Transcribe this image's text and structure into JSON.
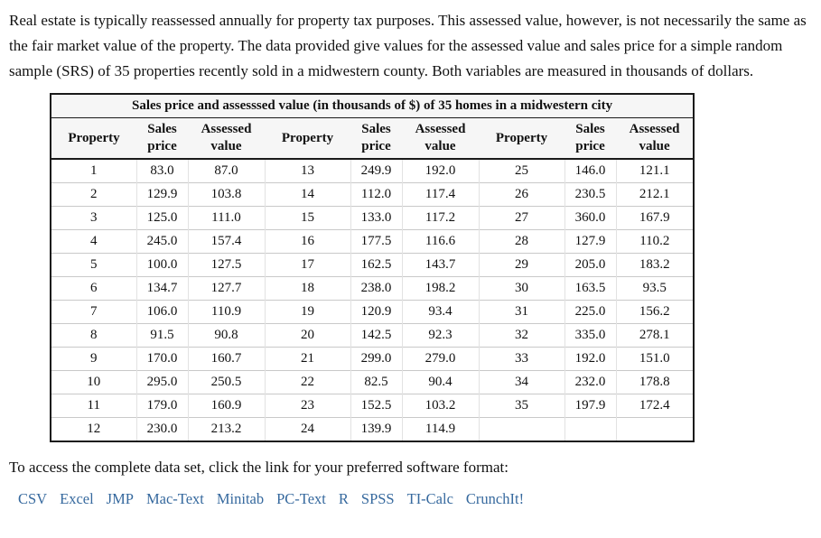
{
  "intro": {
    "text": "Real estate is typically reassessed annually for property tax purposes. This assessed value, however, is not necessarily the same as the fair market value of the property. The data provided give values for the assessed value and sales price for a simple random sample (SRS) of 35 properties recently sold in a midwestern county. Both variables are measured in thousands of dollars."
  },
  "table": {
    "title": "Sales price and assesssed value (in thousands of $) of 35 homes in a midwestern city",
    "headers": [
      "Property",
      "Sales price",
      "Assessed value",
      "Property",
      "Sales price",
      "Assessed value",
      "Property",
      "Sales price",
      "Assessed value"
    ],
    "rows": [
      [
        "1",
        "83.0",
        "87.0",
        "13",
        "249.9",
        "192.0",
        "25",
        "146.0",
        "121.1"
      ],
      [
        "2",
        "129.9",
        "103.8",
        "14",
        "112.0",
        "117.4",
        "26",
        "230.5",
        "212.1"
      ],
      [
        "3",
        "125.0",
        "111.0",
        "15",
        "133.0",
        "117.2",
        "27",
        "360.0",
        "167.9"
      ],
      [
        "4",
        "245.0",
        "157.4",
        "16",
        "177.5",
        "116.6",
        "28",
        "127.9",
        "110.2"
      ],
      [
        "5",
        "100.0",
        "127.5",
        "17",
        "162.5",
        "143.7",
        "29",
        "205.0",
        "183.2"
      ],
      [
        "6",
        "134.7",
        "127.7",
        "18",
        "238.0",
        "198.2",
        "30",
        "163.5",
        "93.5"
      ],
      [
        "7",
        "106.0",
        "110.9",
        "19",
        "120.9",
        "93.4",
        "31",
        "225.0",
        "156.2"
      ],
      [
        "8",
        "91.5",
        "90.8",
        "20",
        "142.5",
        "92.3",
        "32",
        "335.0",
        "278.1"
      ],
      [
        "9",
        "170.0",
        "160.7",
        "21",
        "299.0",
        "279.0",
        "33",
        "192.0",
        "151.0"
      ],
      [
        "10",
        "295.0",
        "250.5",
        "22",
        "82.5",
        "90.4",
        "34",
        "232.0",
        "178.8"
      ],
      [
        "11",
        "179.0",
        "160.9",
        "23",
        "152.5",
        "103.2",
        "35",
        "197.9",
        "172.4"
      ],
      [
        "12",
        "230.0",
        "213.2",
        "24",
        "139.9",
        "114.9",
        "",
        "",
        ""
      ]
    ]
  },
  "footer": {
    "text": "To access the complete data set, click the link for your preferred software format:",
    "links": [
      "CSV",
      "Excel",
      "JMP",
      "Mac-Text",
      "Minitab",
      "PC-Text",
      "R",
      "SPSS",
      "TI-Calc",
      "CrunchIt!"
    ]
  },
  "colors": {
    "link": "#36699e",
    "table_header_bg": "#f6f6f6",
    "border_dark": "#1a1a1a",
    "border_light": "#c9c9c9"
  }
}
